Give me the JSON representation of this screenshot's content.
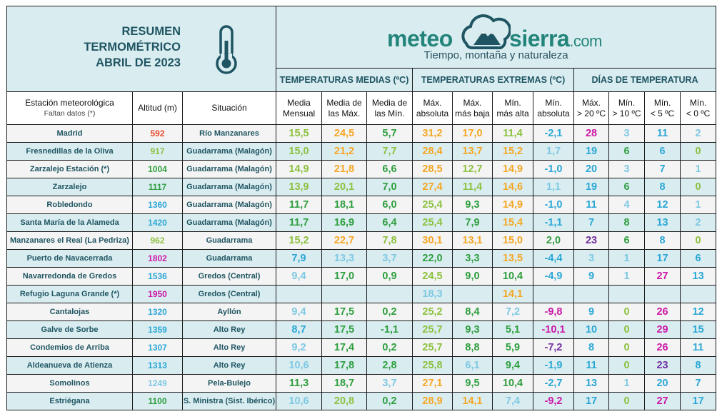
{
  "header": {
    "title_lines": [
      "RESUMEN",
      "TERMOMÉTRICO",
      "ABRIL DE 2023"
    ],
    "thermometer_icon": "thermometer-icon",
    "brand_left": "meteo",
    "brand_right": "sierra",
    "brand_tld": ".com",
    "brand_tagline": "Tiempo, montaña y naturaleza",
    "brand_logo_icon": "cloud-mountain-icon"
  },
  "sections": {
    "medias": "TEMPERATURAS MEDIAS (ºC)",
    "extremas": "TEMPERATURAS EXTREMAS (ºC)",
    "dias": "DÍAS DE TEMPERATURA"
  },
  "columns": {
    "station": "Estación meteorológica",
    "station_note": "Faltan datos (*)",
    "altitude": "Altitud (m)",
    "situation": "Situación",
    "media_mensual": [
      "Media",
      "Mensual"
    ],
    "media_max": [
      "Media de",
      "las Máx."
    ],
    "media_min": [
      "Media de",
      "las Mín."
    ],
    "max_abs": [
      "Máx.",
      "absoluta"
    ],
    "max_baja": [
      "Máx.",
      "más baja"
    ],
    "min_alta": [
      "Mín.",
      "más alta"
    ],
    "min_abs": [
      "Mín.",
      "absoluta"
    ],
    "d_gt20": [
      "Máx.",
      "> 20 ºC"
    ],
    "d_gt10": [
      "Mín.",
      "> 10 ºC"
    ],
    "d_lt5": [
      "Mín.",
      "< 5 ºC"
    ],
    "d_lt0": [
      "Mín.",
      "< 0 ºC"
    ]
  },
  "colors": {
    "c_blue_light": "#7ec8e3",
    "c_cyan": "#2aa7d6",
    "c_green": "#2e9e3e",
    "c_lime": "#8cc13f",
    "c_orange": "#f5a623",
    "c_red": "#e8462b",
    "c_magenta": "#cc18a8",
    "c_violet": "#7030a0",
    "c_purple": "#9b30d0"
  },
  "rows": [
    {
      "station": "Madrid",
      "alt": "592",
      "altc": "c_red",
      "sit": "Río Manzanares",
      "v": [
        [
          "15,5",
          "c_lime"
        ],
        [
          "24,5",
          "c_orange"
        ],
        [
          "5,7",
          "c_green"
        ],
        [
          "31,2",
          "c_orange"
        ],
        [
          "17,0",
          "c_orange"
        ],
        [
          "11,4",
          "c_lime"
        ],
        [
          "-2,1",
          "c_cyan"
        ]
      ],
      "d": [
        [
          "28",
          "c_magenta"
        ],
        [
          "3",
          "c_blue_light"
        ],
        [
          "11",
          "c_cyan"
        ],
        [
          "2",
          "c_blue_light"
        ]
      ]
    },
    {
      "station": "Fresnedillas de la Oliva",
      "alt": "917",
      "altc": "c_lime",
      "sit": "Guadarrama (Malagón)",
      "v": [
        [
          "15,0",
          "c_lime"
        ],
        [
          "21,2",
          "c_orange"
        ],
        [
          "7,7",
          "c_lime"
        ],
        [
          "28,4",
          "c_orange"
        ],
        [
          "13,7",
          "c_orange"
        ],
        [
          "15,2",
          "c_orange"
        ],
        [
          "1,7",
          "c_blue_light"
        ]
      ],
      "d": [
        [
          "19",
          "c_cyan"
        ],
        [
          "6",
          "c_green"
        ],
        [
          "6",
          "c_cyan"
        ],
        [
          "0",
          "c_lime"
        ]
      ]
    },
    {
      "station": "Zarzalejo Estación (*)",
      "alt": "1004",
      "altc": "c_green",
      "sit": "Guadarrama (Malagón)",
      "v": [
        [
          "14,9",
          "c_lime"
        ],
        [
          "21,8",
          "c_orange"
        ],
        [
          "6,6",
          "c_green"
        ],
        [
          "28,5",
          "c_orange"
        ],
        [
          "12,7",
          "c_lime"
        ],
        [
          "14,9",
          "c_orange"
        ],
        [
          "-1,0",
          "c_cyan"
        ]
      ],
      "d": [
        [
          "20",
          "c_cyan"
        ],
        [
          "3",
          "c_blue_light"
        ],
        [
          "7",
          "c_cyan"
        ],
        [
          "1",
          "c_blue_light"
        ]
      ]
    },
    {
      "station": "Zarzalejo",
      "alt": "1117",
      "altc": "c_green",
      "sit": "Guadarrama (Malagón)",
      "v": [
        [
          "13,9",
          "c_lime"
        ],
        [
          "20,1",
          "c_lime"
        ],
        [
          "7,0",
          "c_green"
        ],
        [
          "27,4",
          "c_orange"
        ],
        [
          "11,4",
          "c_lime"
        ],
        [
          "14,6",
          "c_orange"
        ],
        [
          "1,1",
          "c_blue_light"
        ]
      ],
      "d": [
        [
          "19",
          "c_cyan"
        ],
        [
          "6",
          "c_green"
        ],
        [
          "8",
          "c_cyan"
        ],
        [
          "0",
          "c_lime"
        ]
      ]
    },
    {
      "station": "Robledondo",
      "alt": "1360",
      "altc": "c_cyan",
      "sit": "Guadarrama (Malagón)",
      "v": [
        [
          "11,7",
          "c_green"
        ],
        [
          "18,1",
          "c_green"
        ],
        [
          "6,0",
          "c_green"
        ],
        [
          "25,4",
          "c_lime"
        ],
        [
          "9,3",
          "c_green"
        ],
        [
          "14,9",
          "c_orange"
        ],
        [
          "-1,0",
          "c_cyan"
        ]
      ],
      "d": [
        [
          "11",
          "c_cyan"
        ],
        [
          "4",
          "c_blue_light"
        ],
        [
          "12",
          "c_cyan"
        ],
        [
          "1",
          "c_blue_light"
        ]
      ]
    },
    {
      "station": "Santa María de la Alameda",
      "alt": "1420",
      "altc": "c_cyan",
      "sit": "Guadarrama (Malagón)",
      "v": [
        [
          "11,7",
          "c_green"
        ],
        [
          "16,9",
          "c_green"
        ],
        [
          "6,4",
          "c_green"
        ],
        [
          "25,4",
          "c_lime"
        ],
        [
          "7,9",
          "c_green"
        ],
        [
          "15,4",
          "c_orange"
        ],
        [
          "-1,1",
          "c_cyan"
        ]
      ],
      "d": [
        [
          "7",
          "c_cyan"
        ],
        [
          "8",
          "c_green"
        ],
        [
          "13",
          "c_cyan"
        ],
        [
          "2",
          "c_blue_light"
        ]
      ]
    },
    {
      "station": "Manzanares el Real (La Pedriza)",
      "alt": "962",
      "altc": "c_lime",
      "sit": "Guadarrama",
      "v": [
        [
          "15,2",
          "c_lime"
        ],
        [
          "22,7",
          "c_orange"
        ],
        [
          "7,8",
          "c_lime"
        ],
        [
          "30,1",
          "c_orange"
        ],
        [
          "13,1",
          "c_orange"
        ],
        [
          "15,0",
          "c_orange"
        ],
        [
          "2,0",
          "c_green"
        ]
      ],
      "d": [
        [
          "23",
          "c_violet"
        ],
        [
          "6",
          "c_green"
        ],
        [
          "8",
          "c_cyan"
        ],
        [
          "0",
          "c_lime"
        ]
      ]
    },
    {
      "station": "Puerto de Navacerrada",
      "alt": "1802",
      "altc": "c_magenta",
      "sit": "Guadarrama",
      "v": [
        [
          "7,9",
          "c_cyan"
        ],
        [
          "13,3",
          "c_blue_light"
        ],
        [
          "3,7",
          "c_blue_light"
        ],
        [
          "22,0",
          "c_green"
        ],
        [
          "3,3",
          "c_green"
        ],
        [
          "13,5",
          "c_orange"
        ],
        [
          "-4,4",
          "c_cyan"
        ]
      ],
      "d": [
        [
          "3",
          "c_blue_light"
        ],
        [
          "1",
          "c_blue_light"
        ],
        [
          "17",
          "c_cyan"
        ],
        [
          "6",
          "c_cyan"
        ]
      ]
    },
    {
      "station": "Navarredonda de Gredos",
      "alt": "1536",
      "altc": "c_cyan",
      "sit": "Gredos (Central)",
      "v": [
        [
          "9,4",
          "c_blue_light"
        ],
        [
          "17,0",
          "c_green"
        ],
        [
          "0,9",
          "c_green"
        ],
        [
          "24,5",
          "c_lime"
        ],
        [
          "9,0",
          "c_green"
        ],
        [
          "10,4",
          "c_green"
        ],
        [
          "-4,9",
          "c_cyan"
        ]
      ],
      "d": [
        [
          "9",
          "c_cyan"
        ],
        [
          "1",
          "c_blue_light"
        ],
        [
          "27",
          "c_magenta"
        ],
        [
          "13",
          "c_cyan"
        ]
      ]
    },
    {
      "station": "Refugio Laguna Grande (*)",
      "alt": "1950",
      "altc": "c_magenta",
      "sit": "Gredos (Central)",
      "v": [
        [
          "",
          ""
        ],
        [
          "",
          ""
        ],
        [
          "",
          ""
        ],
        [
          "18,3",
          "c_blue_light"
        ],
        [
          "",
          ""
        ],
        [
          "14,1",
          "c_orange"
        ],
        [
          "",
          ""
        ]
      ],
      "d": [
        [
          "",
          ""
        ],
        [
          "",
          ""
        ],
        [
          "",
          ""
        ],
        [
          "",
          ""
        ]
      ]
    },
    {
      "station": "Cantalojas",
      "alt": "1320",
      "altc": "c_cyan",
      "sit": "Ayllón",
      "v": [
        [
          "9,4",
          "c_blue_light"
        ],
        [
          "17,5",
          "c_green"
        ],
        [
          "0,2",
          "c_green"
        ],
        [
          "25,2",
          "c_lime"
        ],
        [
          "8,4",
          "c_green"
        ],
        [
          "7,2",
          "c_blue_light"
        ],
        [
          "-9,8",
          "c_magenta"
        ]
      ],
      "d": [
        [
          "9",
          "c_cyan"
        ],
        [
          "0",
          "c_lime"
        ],
        [
          "26",
          "c_magenta"
        ],
        [
          "12",
          "c_cyan"
        ]
      ]
    },
    {
      "station": "Galve de Sorbe",
      "alt": "1359",
      "altc": "c_cyan",
      "sit": "Alto Rey",
      "v": [
        [
          "8,7",
          "c_cyan"
        ],
        [
          "17,5",
          "c_green"
        ],
        [
          "-1,1",
          "c_green"
        ],
        [
          "25,7",
          "c_lime"
        ],
        [
          "9,3",
          "c_green"
        ],
        [
          "5,1",
          "c_green"
        ],
        [
          "-10,1",
          "c_magenta"
        ]
      ],
      "d": [
        [
          "10",
          "c_cyan"
        ],
        [
          "0",
          "c_lime"
        ],
        [
          "29",
          "c_magenta"
        ],
        [
          "15",
          "c_cyan"
        ]
      ]
    },
    {
      "station": "Condemios de Arriba",
      "alt": "1307",
      "altc": "c_cyan",
      "sit": "Alto Rey",
      "v": [
        [
          "9,2",
          "c_blue_light"
        ],
        [
          "17,4",
          "c_green"
        ],
        [
          "0,2",
          "c_green"
        ],
        [
          "25,7",
          "c_lime"
        ],
        [
          "8,8",
          "c_green"
        ],
        [
          "5,9",
          "c_green"
        ],
        [
          "-7,2",
          "c_violet"
        ]
      ],
      "d": [
        [
          "8",
          "c_cyan"
        ],
        [
          "0",
          "c_lime"
        ],
        [
          "26",
          "c_magenta"
        ],
        [
          "11",
          "c_cyan"
        ]
      ]
    },
    {
      "station": "Aldeanueva de Atienza",
      "alt": "1313",
      "altc": "c_cyan",
      "sit": "Alto Rey",
      "v": [
        [
          "10,6",
          "c_blue_light"
        ],
        [
          "17,8",
          "c_green"
        ],
        [
          "2,8",
          "c_green"
        ],
        [
          "25,8",
          "c_lime"
        ],
        [
          "6,1",
          "c_blue_light"
        ],
        [
          "9,4",
          "c_green"
        ],
        [
          "-1,9",
          "c_cyan"
        ]
      ],
      "d": [
        [
          "11",
          "c_cyan"
        ],
        [
          "0",
          "c_lime"
        ],
        [
          "23",
          "c_violet"
        ],
        [
          "8",
          "c_cyan"
        ]
      ]
    },
    {
      "station": "Somolinos",
      "alt": "1249",
      "altc": "c_blue_light",
      "sit": "Pela-Bulejo",
      "v": [
        [
          "11,3",
          "c_green"
        ],
        [
          "18,7",
          "c_green"
        ],
        [
          "3,7",
          "c_blue_light"
        ],
        [
          "27,1",
          "c_orange"
        ],
        [
          "9,5",
          "c_green"
        ],
        [
          "10,4",
          "c_green"
        ],
        [
          "-2,7",
          "c_cyan"
        ]
      ],
      "d": [
        [
          "13",
          "c_cyan"
        ],
        [
          "1",
          "c_blue_light"
        ],
        [
          "20",
          "c_cyan"
        ],
        [
          "7",
          "c_cyan"
        ]
      ]
    },
    {
      "station": "Estriégana",
      "alt": "1100",
      "altc": "c_green",
      "sit": "S. Ministra (Sist. Ibérico)",
      "v": [
        [
          "10,6",
          "c_blue_light"
        ],
        [
          "20,8",
          "c_lime"
        ],
        [
          "0,2",
          "c_green"
        ],
        [
          "28,9",
          "c_orange"
        ],
        [
          "14,1",
          "c_orange"
        ],
        [
          "7,4",
          "c_blue_light"
        ],
        [
          "-9,2",
          "c_magenta"
        ]
      ],
      "d": [
        [
          "17",
          "c_cyan"
        ],
        [
          "0",
          "c_lime"
        ],
        [
          "27",
          "c_magenta"
        ],
        [
          "17",
          "c_cyan"
        ]
      ]
    }
  ]
}
